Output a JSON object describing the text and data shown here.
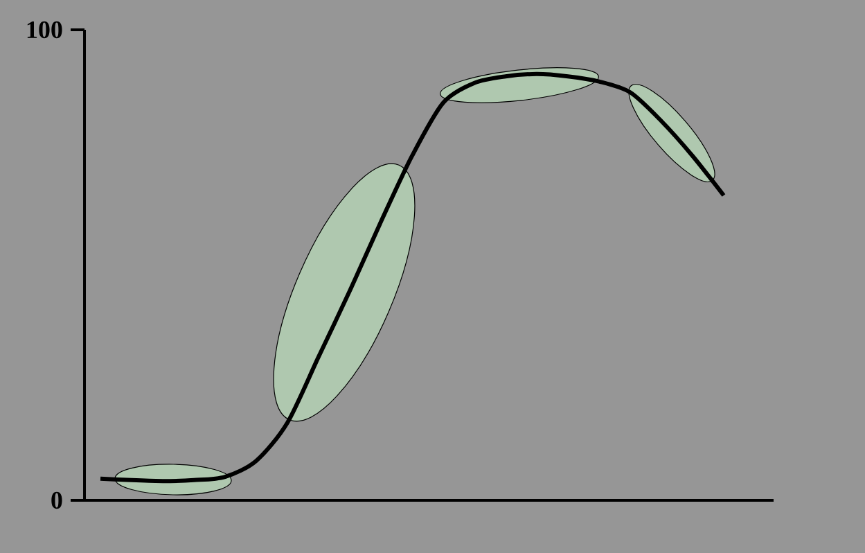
{
  "chart_data": {
    "type": "line",
    "categories": [
      null,
      null,
      null,
      null,
      null,
      null,
      null,
      null,
      null,
      null,
      null,
      null,
      null,
      null,
      null,
      null,
      null,
      null,
      null,
      null,
      null
    ],
    "values": [
      4.6,
      4.3,
      4.1,
      4.3,
      5.0,
      8.4,
      16.5,
      30.5,
      44.5,
      59.2,
      73.2,
      84.5,
      88.7,
      90.1,
      90.6,
      90.1,
      89.0,
      86.7,
      80.6,
      73.2,
      64.8
    ],
    "color": "#000000",
    "ylim": [
      0,
      100
    ],
    "yticks": [
      0,
      100
    ],
    "tick_labels": "y"
  }
}
